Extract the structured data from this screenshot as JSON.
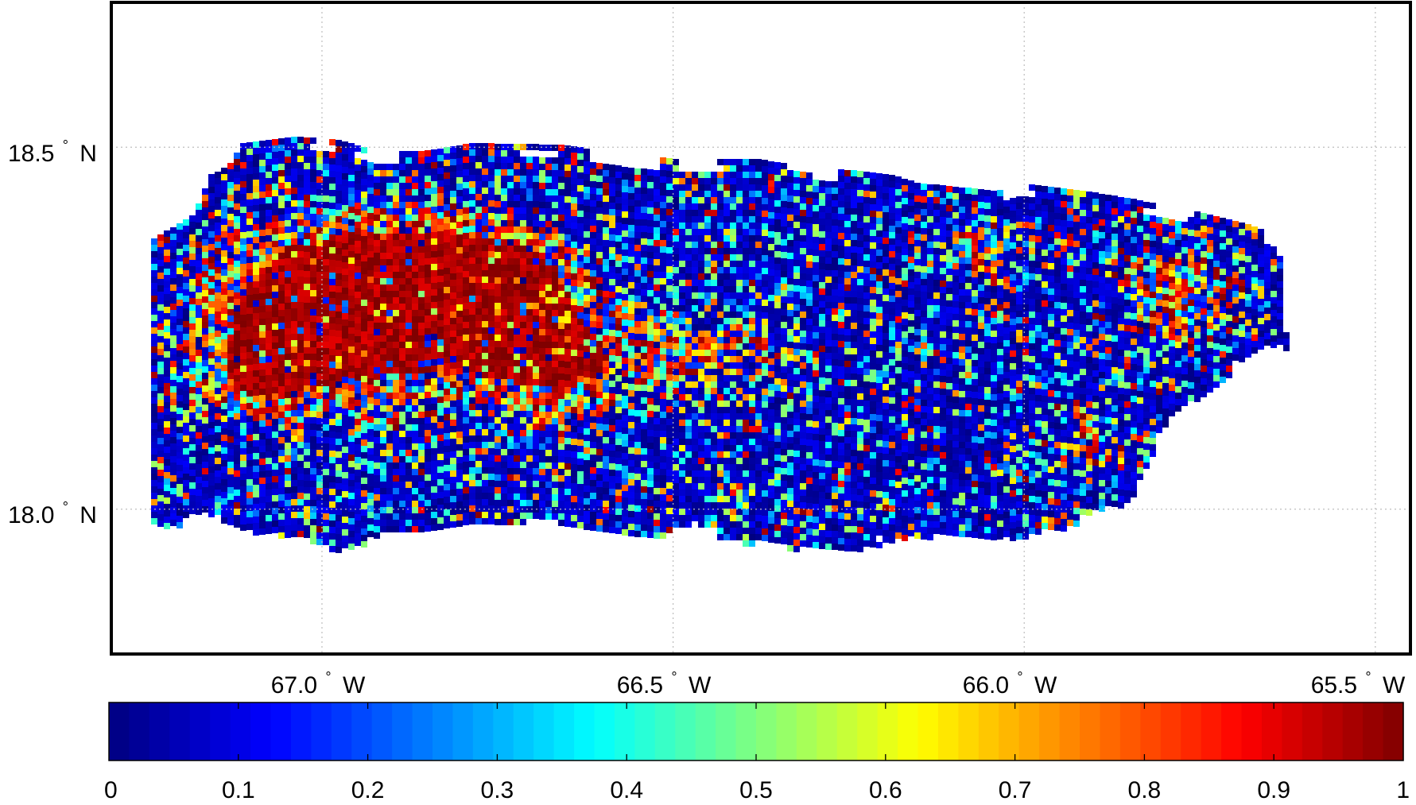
{
  "map": {
    "lat_ticks": [
      {
        "value": 18.5,
        "label": "18.5",
        "suffix": "N"
      },
      {
        "value": 18.0,
        "label": "18.0",
        "suffix": "N"
      }
    ],
    "lon_ticks": [
      {
        "value": -67.0,
        "label": "67.0",
        "suffix": "W"
      },
      {
        "value": -66.5,
        "label": "66.5",
        "suffix": "W"
      },
      {
        "value": -66.0,
        "label": "66.0",
        "suffix": "W"
      },
      {
        "value": -65.5,
        "label": "65.5",
        "suffix": "W"
      }
    ],
    "lon_range": [
      -67.3,
      -65.45
    ],
    "lat_range": [
      17.8,
      18.7
    ],
    "grid": "dotted",
    "colormap": "jet",
    "value_range": [
      0,
      1
    ]
  },
  "colorbar": {
    "ticks": [
      "0",
      "0.1",
      "0.2",
      "0.3",
      "0.4",
      "0.5",
      "0.6",
      "0.7",
      "0.8",
      "0.9",
      "1"
    ],
    "placement": "bottom"
  }
}
